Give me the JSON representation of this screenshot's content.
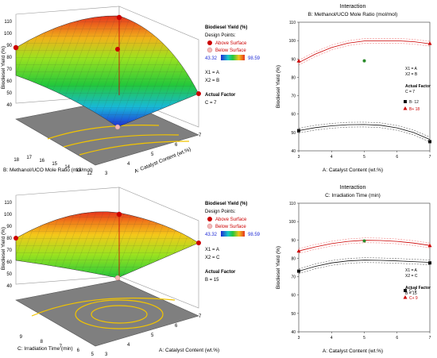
{
  "colors": {
    "above": "#cc0000",
    "below": "#f4b6b6",
    "red": "#cc0000",
    "black": "#111111",
    "band_red": "#f08080",
    "band_black": "#666666",
    "gray_floor": "#7f7f7f",
    "contour": "#f2c400"
  },
  "surface_plots": [
    {
      "z_label": "Biodiesel Yield (%)",
      "x_label": "A: Catalyst Content (wt.%)",
      "y_label": "B: Methanol/UCO Mole Ratio (mol/mol)",
      "z_ticks": [
        "40",
        "50",
        "60",
        "70",
        "80",
        "90",
        "100",
        "110"
      ],
      "x_ticks": [
        "3",
        "4",
        "5",
        "6",
        "7"
      ],
      "y_ticks": [
        "12",
        "13",
        "14",
        "15",
        "16",
        "17",
        "18"
      ],
      "legend_title": "Biodiesel Yield (%)",
      "design_points": "Design Points:",
      "above": "Above Surface",
      "below": "Below Surface",
      "range_min": "43.32",
      "range_max": "98.59",
      "x1": "X1 = A",
      "x2": "X2 = B",
      "actual_factor": "Actual Factor",
      "actual_value": "C = 7"
    },
    {
      "z_label": "Biodiesel Yield (%)",
      "x_label": "A: Catalyst Content (wt.%)",
      "y_label": "C: Irradiation Time (min)",
      "z_ticks": [
        "40",
        "50",
        "60",
        "70",
        "80",
        "90",
        "100",
        "110"
      ],
      "x_ticks": [
        "3",
        "4",
        "5",
        "6",
        "7"
      ],
      "y_ticks": [
        "5",
        "6",
        "7",
        "8",
        "9"
      ],
      "legend_title": "Biodiesel Yield (%)",
      "design_points": "Design Points:",
      "above": "Above Surface",
      "below": "Below Surface",
      "range_min": "43.32",
      "range_max": "98.59",
      "x1": "X1 = A",
      "x2": "X2 = C",
      "actual_factor": "Actual Factor",
      "actual_value": "B = 15"
    }
  ],
  "chart_data": [
    {
      "type": "line",
      "title": "Interaction",
      "subtitle": "B: Methanol/UCO Mole Ratio (mol/mol)",
      "xlabel": "A: Catalyst Content (wt.%)",
      "ylabel": "Biodiesel Yield (%)",
      "xlim": [
        3,
        7
      ],
      "ylim": [
        40,
        110
      ],
      "x_ticks": [
        3,
        4,
        5,
        6,
        7
      ],
      "y_ticks": [
        40,
        50,
        60,
        70,
        80,
        90,
        100,
        110
      ],
      "x": [
        3,
        3.5,
        4,
        4.5,
        5,
        5.5,
        6,
        6.5,
        7
      ],
      "series": [
        {
          "name": "B- 12",
          "color": "black",
          "marker": "square",
          "values": [
            51,
            52.6,
            53.6,
            54.2,
            54.3,
            53.9,
            52.5,
            50,
            46.2
          ],
          "points": [
            [
              3,
              51
            ],
            [
              7,
              45
            ]
          ]
        },
        {
          "name": "B+ 18",
          "color": "red",
          "marker": "triangle",
          "values": [
            88,
            92.6,
            96.2,
            98.6,
            99.8,
            99.9,
            99.9,
            99.4,
            98.3
          ],
          "points": [
            [
              3,
              89
            ],
            [
              7,
              98.5
            ]
          ]
        }
      ],
      "center_point": [
        5,
        89
      ],
      "annot": {
        "x1": "X1 = A",
        "x2": "X2 = B",
        "actual_factor": "Actual Factor",
        "actual_value": "C = 7"
      }
    },
    {
      "type": "line",
      "title": "Interaction",
      "subtitle": "C: Irradiation Time (min)",
      "xlabel": "A: Catalyst Content (wt.%)",
      "ylabel": "Biodiesel Yield (%)",
      "xlim": [
        3,
        7
      ],
      "ylim": [
        40,
        110
      ],
      "x_ticks": [
        3,
        4,
        5,
        6,
        7
      ],
      "y_ticks": [
        40,
        50,
        60,
        70,
        80,
        90,
        100,
        110
      ],
      "x": [
        3,
        3.5,
        4,
        4.5,
        5,
        5.5,
        6,
        6.5,
        7
      ],
      "series": [
        {
          "name": "C- 5",
          "color": "black",
          "marker": "square",
          "values": [
            73,
            75.6,
            77.5,
            78.6,
            79,
            78.9,
            78.6,
            78.2,
            77.8
          ],
          "points": [
            [
              3,
              73
            ],
            [
              7,
              77.5
            ]
          ]
        },
        {
          "name": "C+ 9",
          "color": "red",
          "marker": "triangle",
          "values": [
            84,
            86.2,
            88,
            89.2,
            89.8,
            89.7,
            89.2,
            88.3,
            87
          ],
          "points": [
            [
              3,
              84
            ],
            [
              7,
              87
            ]
          ]
        }
      ],
      "center_point": [
        5,
        89.5
      ],
      "annot": {
        "x1": "X1 = A",
        "x2": "X2 = C",
        "actual_factor": "Actual Factor",
        "actual_value": "B = 15"
      }
    }
  ]
}
